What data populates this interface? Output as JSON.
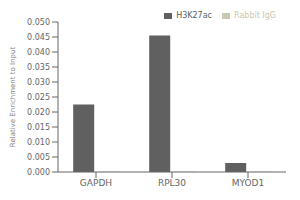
{
  "chart_data": {
    "type": "bar",
    "categories": [
      "GAPDH",
      "RPL30",
      "MYOD1"
    ],
    "series": [
      {
        "name": "H3K27ac",
        "color": "#606060",
        "values": [
          0.0225,
          0.0455,
          0.003
        ]
      },
      {
        "name": "Rabbit IgG",
        "color": "#c8c8b0",
        "values": [
          0.0001,
          0.0001,
          0.0001
        ]
      }
    ],
    "ylabel": "Relative Enrichment to Input",
    "ylim": [
      0,
      0.05
    ],
    "yticks": [
      {
        "value": 0.0,
        "label": "0.000"
      },
      {
        "value": 0.005,
        "label": "0.005"
      },
      {
        "value": 0.01,
        "label": "0.010"
      },
      {
        "value": 0.015,
        "label": "0.015"
      },
      {
        "value": 0.02,
        "label": "0.020"
      },
      {
        "value": 0.025,
        "label": "0.025"
      },
      {
        "value": 0.03,
        "label": "0.030"
      },
      {
        "value": 0.035,
        "label": "0.035"
      },
      {
        "value": 0.04,
        "label": "0.040"
      },
      {
        "value": 0.045,
        "label": "0.045"
      },
      {
        "value": 0.05,
        "label": "0.050"
      }
    ],
    "legend": "upper right",
    "grid": false
  }
}
